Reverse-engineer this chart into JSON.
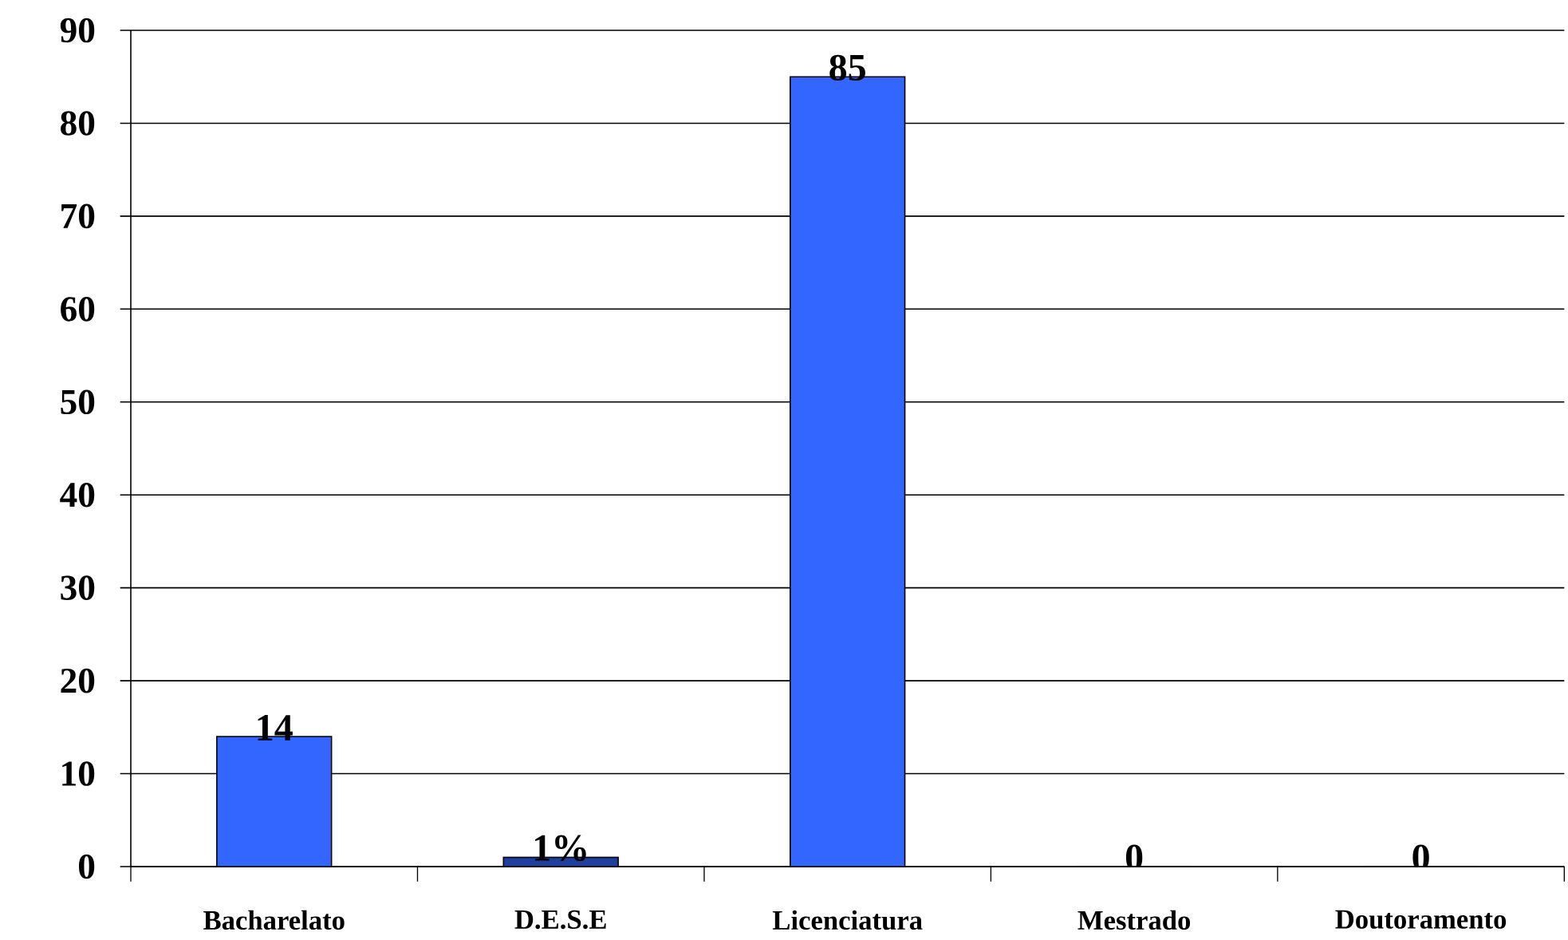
{
  "chart_data": {
    "type": "bar",
    "categories": [
      "Bacharelato",
      "D.E.S.E",
      "Licenciatura",
      "Mestrado",
      "Doutoramento"
    ],
    "values": [
      14,
      1,
      85,
      0,
      0
    ],
    "value_labels": [
      "14",
      "1%",
      "85",
      "0",
      "0"
    ],
    "colors": [
      "#3366ff",
      "#1f3f9f",
      "#3366ff",
      "#3366ff",
      "#3366ff"
    ],
    "ylim": [
      0,
      90
    ],
    "yticks": [
      0,
      10,
      20,
      30,
      40,
      50,
      60,
      70,
      80,
      90
    ],
    "grid": "y"
  }
}
